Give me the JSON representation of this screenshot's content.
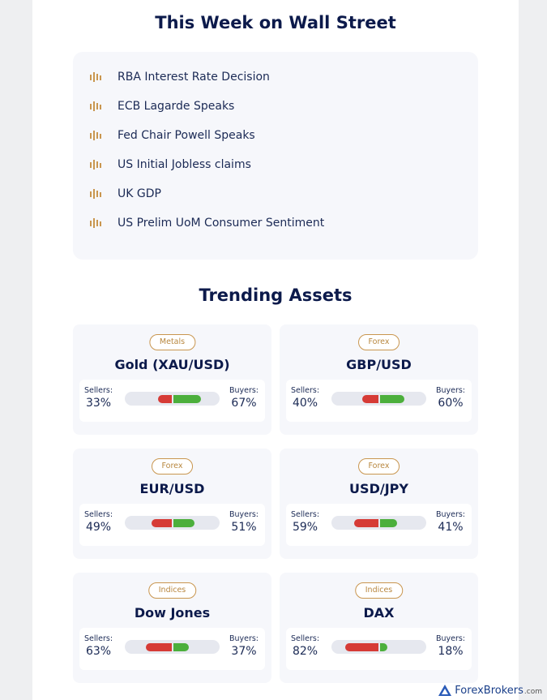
{
  "calendar": {
    "title": "This Week on Wall Street",
    "events": [
      {
        "label": "RBA Interest Rate Decision"
      },
      {
        "label": "ECB Lagarde Speaks"
      },
      {
        "label": "Fed Chair Powell Speaks"
      },
      {
        "label": "US Initial Jobless claims"
      },
      {
        "label": "UK GDP"
      },
      {
        "label": "US Prelim UoM Consumer Sentiment"
      }
    ]
  },
  "trending": {
    "title": "Trending Assets",
    "sellers_label": "Sellers:",
    "buyers_label": "Buyers:",
    "assets": [
      {
        "category": "Metals",
        "name": "Gold (XAU/USD)",
        "sellers": 33,
        "buyers": 67,
        "sellers_text": "33%",
        "buyers_text": "67%"
      },
      {
        "category": "Forex",
        "name": "GBP/USD",
        "sellers": 40,
        "buyers": 60,
        "sellers_text": "40%",
        "buyers_text": "60%"
      },
      {
        "category": "Forex",
        "name": "EUR/USD",
        "sellers": 49,
        "buyers": 51,
        "sellers_text": "49%",
        "buyers_text": "51%"
      },
      {
        "category": "Forex",
        "name": "USD/JPY",
        "sellers": 59,
        "buyers": 41,
        "sellers_text": "59%",
        "buyers_text": "41%"
      },
      {
        "category": "Indices",
        "name": "Dow Jones",
        "sellers": 63,
        "buyers": 37,
        "sellers_text": "63%",
        "buyers_text": "37%"
      },
      {
        "category": "Indices",
        "name": "DAX",
        "sellers": 82,
        "buyers": 18,
        "sellers_text": "82%",
        "buyers_text": "18%"
      }
    ]
  },
  "watermark": {
    "brand": "ForexBrokers",
    "suffix": ".com"
  },
  "colors": {
    "sellers": "#d63b36",
    "buyers": "#4caf3c",
    "accent": "#c9964f",
    "heading": "#0c1a4b"
  },
  "icons": {
    "event": "candlestick-icon",
    "logo": "forexbrokers-logo-icon"
  }
}
